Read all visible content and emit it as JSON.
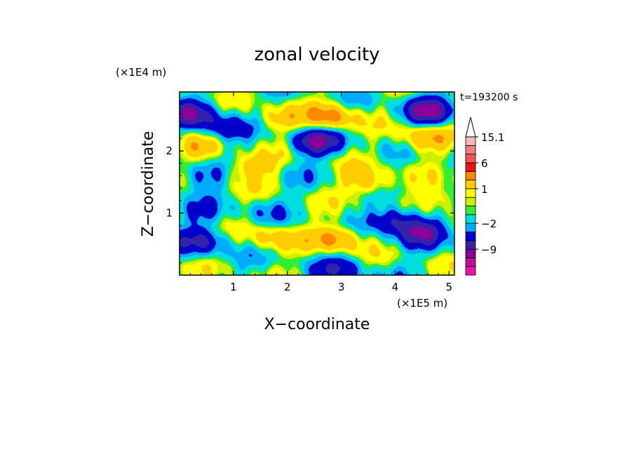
{
  "chart_data": {
    "type": "heatmap",
    "title": "zonal velocity",
    "xlabel": "X−coordinate",
    "ylabel": "Z−coordinate",
    "x_unit": "(×1E5 m)",
    "y_unit": "(×1E4 m)",
    "time_label": "t=193200 s",
    "xlim": [
      0,
      5.1
    ],
    "ylim": [
      0,
      2.95
    ],
    "x_ticks": [
      {
        "value": 1,
        "label": "1"
      },
      {
        "value": 2,
        "label": "2"
      },
      {
        "value": 3,
        "label": "3"
      },
      {
        "value": 4,
        "label": "4"
      },
      {
        "value": 5,
        "label": "5"
      }
    ],
    "y_ticks": [
      {
        "value": 1,
        "label": "1"
      },
      {
        "value": 2,
        "label": "2"
      }
    ],
    "colorbar": {
      "levels": [
        {
          "value": -15.1,
          "color": "#ee11aa"
        },
        {
          "value": -12,
          "color": "#bb1199"
        },
        {
          "value": -9,
          "color": "#880099"
        },
        {
          "value": -6,
          "color": "#3322aa"
        },
        {
          "value": -4,
          "color": "#0000cc"
        },
        {
          "value": -2,
          "color": "#00aaff"
        },
        {
          "value": -1,
          "color": "#00dddd"
        },
        {
          "value": 0,
          "color": "#33ee33"
        },
        {
          "value": 0.5,
          "color": "#ccee00"
        },
        {
          "value": 1,
          "color": "#ffff00"
        },
        {
          "value": 2,
          "color": "#ffcc00"
        },
        {
          "value": 4,
          "color": "#ff8800"
        },
        {
          "value": 6,
          "color": "#ee1111"
        },
        {
          "value": 9,
          "color": "#ee5555"
        },
        {
          "value": 12,
          "color": "#f08080"
        },
        {
          "value": 15.1,
          "color": "#f8b8b8"
        }
      ],
      "tick_labels": [
        "15.1",
        "6",
        "1",
        "−2",
        "−9"
      ],
      "tick_values": [
        15.1,
        6,
        1,
        -2,
        -9
      ],
      "extend": "max"
    },
    "features": [
      {
        "x": 0.2,
        "z": 2.6,
        "u": -5
      },
      {
        "x": 4.6,
        "z": 2.65,
        "u": -6
      },
      {
        "x": 2.5,
        "z": 2.15,
        "u": -6
      },
      {
        "x": 0.8,
        "z": 2.35,
        "u": -4
      },
      {
        "x": 0.35,
        "z": 1.6,
        "u": -3
      },
      {
        "x": 4.0,
        "z": 0.9,
        "u": -5
      },
      {
        "x": 0.45,
        "z": 0.55,
        "u": -4
      },
      {
        "x": 4.5,
        "z": 0.7,
        "u": -5
      },
      {
        "x": 2.9,
        "z": 0.6,
        "u": 5
      },
      {
        "x": 3.5,
        "z": 1.5,
        "u": 4
      },
      {
        "x": 4.5,
        "z": 2.2,
        "u": 4
      },
      {
        "x": 2.8,
        "z": 2.55,
        "u": 5
      },
      {
        "x": 1.8,
        "z": 2.5,
        "u": 3
      },
      {
        "x": 0.3,
        "z": 2.05,
        "u": 3
      },
      {
        "x": 1.3,
        "z": 1.75,
        "u": 4
      },
      {
        "x": 1.7,
        "z": 0.6,
        "u": 3
      },
      {
        "x": 4.8,
        "z": 1.2,
        "u": 3
      },
      {
        "x": 1.5,
        "z": 1.05,
        "u": -1
      },
      {
        "x": 3.0,
        "z": 0.1,
        "u": -3
      },
      {
        "x": 0.4,
        "z": 0.95,
        "u": -1.5
      }
    ]
  }
}
